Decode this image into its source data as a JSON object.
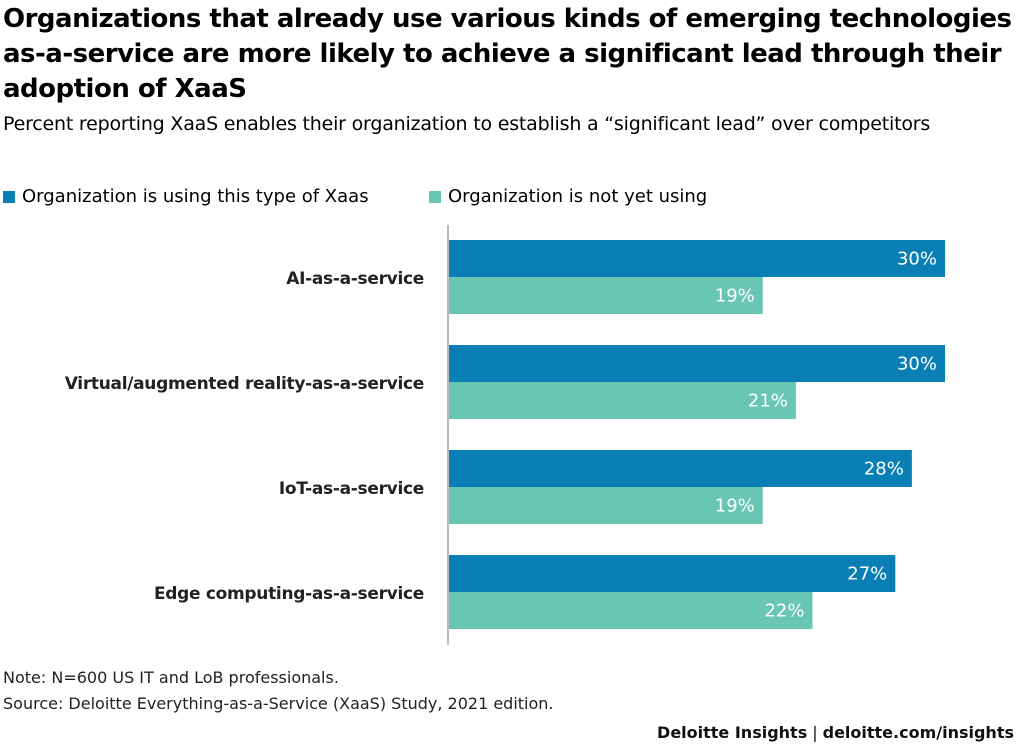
{
  "header": {
    "title": "Organizations that already use various kinds of emerging technologies as-a-service are more likely to achieve a significant lead through their adoption of XaaS",
    "subtitle": "Percent reporting XaaS enables their organization to establish a “significant lead” over competitors"
  },
  "legend": {
    "using_label": "Organization is using this type of Xaas",
    "not_using_label": "Organization is not yet using"
  },
  "colors": {
    "using": "#0a7fb5",
    "not_using": "#68c6b2",
    "axis": "#bbbbbb"
  },
  "chart_data": {
    "type": "bar",
    "orientation": "horizontal",
    "categories": [
      "AI-as-a-service",
      "Virtual/augmented reality-as-a-service",
      "IoT-as-a-service",
      "Edge computing-as-a-service"
    ],
    "series": [
      {
        "name": "Organization is using this type of Xaas",
        "values": [
          30,
          30,
          28,
          27
        ]
      },
      {
        "name": "Organization is not yet using",
        "values": [
          19,
          21,
          19,
          22
        ]
      }
    ],
    "value_suffix": "%",
    "xlim": [
      0,
      30
    ],
    "legend_position": "top-left",
    "grid": false
  },
  "footer": {
    "note": "Note: N=600 US IT and LoB professionals.",
    "source": "Source: Deloitte Everything-as-a-Service (XaaS) Study, 2021 edition.",
    "brand": "Deloitte Insights",
    "separator": "|",
    "site": "deloitte.com/insights"
  }
}
